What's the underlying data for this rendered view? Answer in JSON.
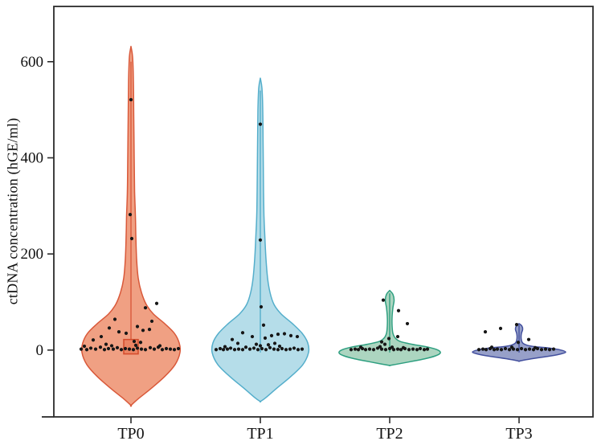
{
  "chart_data": {
    "type": "violin",
    "title": "",
    "xlabel": "",
    "ylabel": "ctDNA concentration (hGE/ml)",
    "categories": [
      "TP0",
      "TP1",
      "TP2",
      "TP3"
    ],
    "y_ticks": [
      0,
      200,
      400,
      600
    ],
    "ylim": [
      -139,
      715
    ],
    "grid": false,
    "legend": "none",
    "axis_color": "#2b2b2b",
    "point_color": "#161616",
    "groups": [
      {
        "label": "TP0",
        "fill": "#F0A083",
        "stroke": "#D9593A",
        "box": {
          "lo": -8,
          "hi": 22,
          "half_width": 9,
          "fill": "#EB8463",
          "stroke": "#D34A2B"
        },
        "center_line": {
          "from": -8,
          "to": 600
        },
        "profile": [
          [
            632,
            0
          ],
          [
            610,
            2
          ],
          [
            560,
            3
          ],
          [
            480,
            3.5
          ],
          [
            400,
            4
          ],
          [
            330,
            4.5
          ],
          [
            280,
            5.5
          ],
          [
            240,
            6
          ],
          [
            190,
            7
          ],
          [
            150,
            9
          ],
          [
            120,
            13
          ],
          [
            95,
            19
          ],
          [
            75,
            28
          ],
          [
            55,
            42
          ],
          [
            35,
            54
          ],
          [
            15,
            60
          ],
          [
            -5,
            61
          ],
          [
            -30,
            55
          ],
          [
            -55,
            42
          ],
          [
            -80,
            25
          ],
          [
            -100,
            10
          ],
          [
            -115,
            0
          ]
        ],
        "points": [
          [
            0,
            521
          ],
          [
            -1,
            282
          ],
          [
            1,
            232
          ],
          [
            32,
            97
          ],
          [
            18,
            88
          ],
          [
            26,
            60
          ],
          [
            -20,
            64
          ],
          [
            -27,
            46
          ],
          [
            -15,
            38
          ],
          [
            -6,
            35
          ],
          [
            8,
            49
          ],
          [
            15,
            41
          ],
          [
            23,
            43
          ],
          [
            -37,
            28
          ],
          [
            4,
            18
          ],
          [
            12,
            16
          ],
          [
            -47,
            21
          ],
          [
            -31,
            12
          ],
          [
            -62,
            2
          ],
          [
            -55,
            1
          ],
          [
            -50,
            4
          ],
          [
            -44,
            2
          ],
          [
            -38,
            6
          ],
          [
            -33,
            1
          ],
          [
            -28,
            3
          ],
          [
            -22,
            2
          ],
          [
            -17,
            5
          ],
          [
            -12,
            1
          ],
          [
            -7,
            3
          ],
          [
            -2,
            2
          ],
          [
            3,
            1
          ],
          [
            8,
            4
          ],
          [
            13,
            2
          ],
          [
            18,
            1
          ],
          [
            24,
            5
          ],
          [
            29,
            2
          ],
          [
            34,
            6
          ],
          [
            39,
            1
          ],
          [
            44,
            3
          ],
          [
            49,
            2
          ],
          [
            54,
            1
          ],
          [
            59,
            3
          ],
          [
            -58,
            8
          ],
          [
            6,
            10
          ],
          [
            -24,
            9
          ],
          [
            36,
            9
          ]
        ]
      },
      {
        "label": "TP1",
        "fill": "#B5DDE9",
        "stroke": "#54AECB",
        "box": null,
        "center_line": {
          "from": -5,
          "to": 540
        },
        "profile": [
          [
            566,
            0
          ],
          [
            545,
            2
          ],
          [
            500,
            3
          ],
          [
            420,
            3.5
          ],
          [
            330,
            4
          ],
          [
            280,
            4.5
          ],
          [
            240,
            5.5
          ],
          [
            190,
            7
          ],
          [
            150,
            9
          ],
          [
            120,
            12
          ],
          [
            95,
            17
          ],
          [
            75,
            26
          ],
          [
            55,
            40
          ],
          [
            35,
            52
          ],
          [
            15,
            59
          ],
          [
            -5,
            60
          ],
          [
            -30,
            53
          ],
          [
            -55,
            38
          ],
          [
            -80,
            20
          ],
          [
            -100,
            6
          ],
          [
            -107,
            0
          ]
        ],
        "points": [
          [
            0,
            470
          ],
          [
            0,
            229
          ],
          [
            1,
            90
          ],
          [
            4,
            52
          ],
          [
            -22,
            36
          ],
          [
            -35,
            22
          ],
          [
            -10,
            28
          ],
          [
            6,
            25
          ],
          [
            14,
            30
          ],
          [
            22,
            33
          ],
          [
            30,
            34
          ],
          [
            38,
            30
          ],
          [
            46,
            28
          ],
          [
            -28,
            14
          ],
          [
            18,
            14
          ],
          [
            -5,
            12
          ],
          [
            10,
            11
          ],
          [
            -55,
            1
          ],
          [
            -50,
            3
          ],
          [
            -46,
            1
          ],
          [
            -41,
            2
          ],
          [
            -37,
            4
          ],
          [
            -32,
            1
          ],
          [
            -27,
            2
          ],
          [
            -22,
            1
          ],
          [
            -18,
            6
          ],
          [
            -13,
            2
          ],
          [
            -8,
            4
          ],
          [
            -3,
            1
          ],
          [
            2,
            3
          ],
          [
            7,
            1
          ],
          [
            12,
            5
          ],
          [
            17,
            2
          ],
          [
            22,
            1
          ],
          [
            27,
            3
          ],
          [
            32,
            1
          ],
          [
            37,
            2
          ],
          [
            42,
            4
          ],
          [
            47,
            1
          ],
          [
            52,
            2
          ],
          [
            -44,
            7
          ],
          [
            24,
            8
          ],
          [
            0,
            9
          ]
        ]
      },
      {
        "label": "TP2",
        "fill": "#ACD5C0",
        "stroke": "#2E9F80",
        "box": null,
        "center_line": {
          "from": -5,
          "to": 118
        },
        "profile": [
          [
            124,
            0
          ],
          [
            116,
            4
          ],
          [
            104,
            5.5
          ],
          [
            88,
            4
          ],
          [
            70,
            3
          ],
          [
            50,
            3
          ],
          [
            35,
            4
          ],
          [
            25,
            7
          ],
          [
            18,
            13
          ],
          [
            12,
            28
          ],
          [
            6,
            48
          ],
          [
            0,
            60
          ],
          [
            -6,
            63
          ],
          [
            -12,
            57
          ],
          [
            -18,
            44
          ],
          [
            -24,
            26
          ],
          [
            -29,
            10
          ],
          [
            -32,
            0
          ]
        ],
        "points": [
          [
            -8,
            104
          ],
          [
            11,
            82
          ],
          [
            22,
            55
          ],
          [
            10,
            28
          ],
          [
            -1,
            24
          ],
          [
            -10,
            17
          ],
          [
            -6,
            12
          ],
          [
            -48,
            1
          ],
          [
            -43,
            2
          ],
          [
            -39,
            1
          ],
          [
            -34,
            3
          ],
          [
            -30,
            1
          ],
          [
            -25,
            2
          ],
          [
            -20,
            1
          ],
          [
            -15,
            4
          ],
          [
            -10,
            2
          ],
          [
            -5,
            1
          ],
          [
            0,
            3
          ],
          [
            5,
            1
          ],
          [
            10,
            2
          ],
          [
            14,
            1
          ],
          [
            19,
            3
          ],
          [
            24,
            1
          ],
          [
            29,
            2
          ],
          [
            34,
            1
          ],
          [
            38,
            3
          ],
          [
            43,
            1
          ],
          [
            47,
            2
          ],
          [
            -36,
            6
          ],
          [
            -12,
            7
          ],
          [
            3,
            6
          ],
          [
            17,
            5
          ]
        ]
      },
      {
        "label": "TP3",
        "fill": "#97A0C9",
        "stroke": "#43509E",
        "box": null,
        "center_line": {
          "from": -5,
          "to": 52
        },
        "profile": [
          [
            55,
            0
          ],
          [
            50,
            3.5
          ],
          [
            43,
            4.5
          ],
          [
            35,
            3
          ],
          [
            28,
            2.5
          ],
          [
            20,
            3
          ],
          [
            14,
            5
          ],
          [
            10,
            10
          ],
          [
            7,
            20
          ],
          [
            4,
            38
          ],
          [
            0,
            52
          ],
          [
            -4,
            58
          ],
          [
            -8,
            52
          ],
          [
            -12,
            40
          ],
          [
            -16,
            24
          ],
          [
            -20,
            9
          ],
          [
            -23,
            0
          ]
        ],
        "points": [
          [
            -42,
            38
          ],
          [
            -23,
            45
          ],
          [
            -3,
            53
          ],
          [
            12,
            22
          ],
          [
            -1,
            16
          ],
          [
            -50,
            1
          ],
          [
            -45,
            2
          ],
          [
            -41,
            1
          ],
          [
            -36,
            3
          ],
          [
            -31,
            1
          ],
          [
            -27,
            2
          ],
          [
            -22,
            1
          ],
          [
            -17,
            3
          ],
          [
            -12,
            1
          ],
          [
            -7,
            2
          ],
          [
            -2,
            1
          ],
          [
            3,
            3
          ],
          [
            8,
            1
          ],
          [
            13,
            2
          ],
          [
            18,
            1
          ],
          [
            23,
            3
          ],
          [
            28,
            1
          ],
          [
            33,
            2
          ],
          [
            38,
            1
          ],
          [
            43,
            2
          ],
          [
            -34,
            6
          ],
          [
            -9,
            6
          ],
          [
            20,
            5
          ]
        ]
      }
    ]
  }
}
